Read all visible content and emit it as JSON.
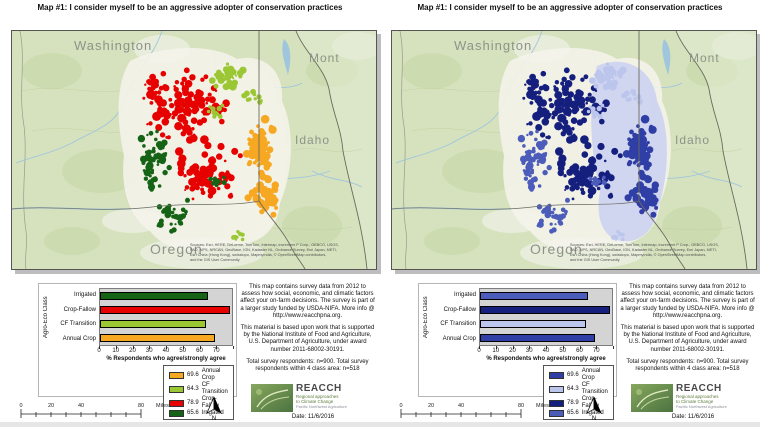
{
  "chart_data": [
    {
      "type": "bar",
      "orientation": "horizontal",
      "title": "Map #1: I consider myself to be an aggressive adopter of conservation practices (left / color map)",
      "categories": [
        "Irrigated",
        "Crop-Fallow",
        "CF Transition",
        "Annual Crop"
      ],
      "values": [
        65.6,
        78.9,
        64.3,
        69.6
      ],
      "bar_colors": [
        "#156315",
        "#E60000",
        "#9BC734",
        "#F7A823"
      ],
      "xlabel": "% Respondents who agree/strongly agree",
      "ylabel": "Agro-Eco Class",
      "xlim": [
        0,
        80
      ],
      "xticks": [
        0,
        10,
        20,
        30,
        40,
        50,
        60,
        70
      ],
      "grid": false,
      "legend_position": "below",
      "legend": [
        "69.6 Annual Crop",
        "64.3 CF Transition",
        "78.9 Crop-Fallow",
        "65.6 Irrigated"
      ]
    },
    {
      "type": "bar",
      "orientation": "horizontal",
      "title": "Map #1: I consider myself to be an aggressive adopter of conservation practices (right / blue map)",
      "categories": [
        "Irrigated",
        "Crop-Fallow",
        "CF Transition",
        "Annual Crop"
      ],
      "values": [
        65.6,
        78.9,
        64.3,
        69.6
      ],
      "bar_colors": [
        "#4C5CBA",
        "#151F7E",
        "#BCC5EC",
        "#2F3FA5"
      ],
      "xlabel": "% Respondents who agree/strongly agree",
      "ylabel": "Agro-Eco Class",
      "xlim": [
        0,
        80
      ],
      "xticks": [
        0,
        10,
        20,
        30,
        40,
        50,
        60,
        70
      ],
      "grid": false,
      "legend_position": "below",
      "legend": [
        "69.6 Annual Crop",
        "64.3 CF Transition",
        "78.9 Crop-Fallow",
        "65.6 Irrigated"
      ]
    }
  ],
  "figure": {
    "panels": [
      {
        "title": "Map #1: I consider myself to be an aggressive adopter of conservation practices",
        "map_labels": {
          "nw": "Washington",
          "ne": "Mont",
          "e": "Idaho",
          "s": "Oregon"
        },
        "attribution": {
          "line1": "Sources: Esri, HERE, DeLorme, TomTom, Intermap, increment P Corp., GEBCO, USGS,",
          "line2": "FAO, NPS, NRCAN, GeoBase, IGN, Kadaster NL, Ordnance Survey, Esri Japan, METI,",
          "line3": "Esri China (Hong Kong), swisstopo, MapmyIndia, © OpenStreetMap contributors,",
          "line4": "and the GIS User Community"
        },
        "map_colors": {
          "halo": "#F4F3EA",
          "halo2": "#F2F1E6",
          "crop_fallow": "#E60000",
          "irrigated": "#156315",
          "cf_transition": "#9BC734",
          "annual_crop": "#F7A823"
        },
        "chart": {
          "ylabel": "Agro-Eco Class",
          "xlabel": "% Respondents who agree/strongly agree",
          "xmax": 80,
          "xticks": [
            "0",
            "10",
            "20",
            "30",
            "40",
            "50",
            "60",
            "70"
          ],
          "rows": [
            {
              "label": "Irrigated",
              "value": 65.6,
              "color": "#156315"
            },
            {
              "label": "Crop-Fallow",
              "value": 78.9,
              "color": "#E60000"
            },
            {
              "label": "CF Transition",
              "value": 64.3,
              "color": "#9BC734"
            },
            {
              "label": "Annual Crop",
              "value": 69.6,
              "color": "#F7A823"
            }
          ]
        },
        "legend": [
          {
            "value": "69.6",
            "label": "Annual Crop",
            "color": "#F7A823"
          },
          {
            "value": "64.3",
            "label": "CF Transition",
            "color": "#9BC734"
          },
          {
            "value": "78.9",
            "label": "Crop-Fallow",
            "color": "#E60000"
          },
          {
            "value": "65.6",
            "label": "Irrigated",
            "color": "#156315"
          }
        ],
        "notes": {
          "p1": "This map contains survey data from 2012 to assess how social, economic, and climatic factors affect your on-farm decisions. The survey is part of a larger study funded by USDA-NIFA. More info @ http://www.reacchpna.org.",
          "p2": "This material is based upon work that is supported by the National Institute of Food and Agriculture, U.S. Department of Agriculture, under award number 2011-68002-30191.",
          "p3": "Total survey respondents: n=900. Total survey respondents within 4 class area: n=518"
        },
        "scalebar": {
          "t0": "0",
          "t20": "20",
          "t40": "40",
          "t80": "80",
          "unit": "Miles"
        },
        "north": "N",
        "logo": {
          "name": "REACCH",
          "sub1": "Regional approaches",
          "sub2": "to Climate Change",
          "sub3": "Pacific Northwest Agriculture"
        },
        "date": "Date: 11/6/2016"
      },
      {
        "title": "Map #1: I consider myself to be an aggressive adopter of conservation practices",
        "map_labels": {
          "nw": "Washington",
          "ne": "Mont",
          "e": "Idaho",
          "s": "Oregon"
        },
        "attribution": {
          "line1": "Sources: Esri, HERE, DeLorme, TomTom, Intermap, increment P Corp., GEBCO, USGS,",
          "line2": "FAO, NPS, NRCAN, GeoBase, IGN, Kadaster NL, Ordnance Survey, Esri Japan, METI,",
          "line3": "Esri China (Hong Kong), swisstopo, MapmyIndia, © OpenStreetMap contributors,",
          "line4": "and the GIS User Community"
        },
        "map_colors": {
          "halo": "#F4F3EA",
          "halo2": "#CDD3F0",
          "crop_fallow": "#151F7E",
          "irrigated": "#4C5CBA",
          "cf_transition": "#BCC5EC",
          "annual_crop": "#2F3FA5"
        },
        "chart": {
          "ylabel": "Agro-Eco Class",
          "xlabel": "% Respondents who agree/strongly agree",
          "xmax": 80,
          "xticks": [
            "0",
            "10",
            "20",
            "30",
            "40",
            "50",
            "60",
            "70"
          ],
          "rows": [
            {
              "label": "Irrigated",
              "value": 65.6,
              "color": "#4C5CBA"
            },
            {
              "label": "Crop-Fallow",
              "value": 78.9,
              "color": "#151F7E"
            },
            {
              "label": "CF Transition",
              "value": 64.3,
              "color": "#BCC5EC"
            },
            {
              "label": "Annual Crop",
              "value": 69.6,
              "color": "#2F3FA5"
            }
          ]
        },
        "legend": [
          {
            "value": "69.6",
            "label": "Annual Crop",
            "color": "#2F3FA5"
          },
          {
            "value": "64.3",
            "label": "CF Transition",
            "color": "#BCC5EC"
          },
          {
            "value": "78.9",
            "label": "Crop-Fallow",
            "color": "#151F7E"
          },
          {
            "value": "65.6",
            "label": "Irrigated",
            "color": "#4C5CBA"
          }
        ],
        "notes": {
          "p1": "This map contains survey data from 2012 to assess how social, economic, and climatic factors affect your on-farm decisions. The survey is part of a larger study funded by USDA-NIFA. More info @ http://www.reacchpna.org.",
          "p2": "This material is based upon work that is supported by the National Institute of Food and Agriculture, U.S. Department of Agriculture, under award number 2011-68002-30191.",
          "p3": "Total survey respondents: n=900. Total survey respondents within 4 class area: n=518"
        },
        "scalebar": {
          "t0": "0",
          "t20": "20",
          "t40": "40",
          "t80": "80",
          "unit": "Miles"
        },
        "north": "N",
        "logo": {
          "name": "REACCH",
          "sub1": "Regional approaches",
          "sub2": "to Climate Change",
          "sub3": "Pacific Northwest Agriculture"
        },
        "date": "Date: 11/6/2016"
      }
    ]
  }
}
